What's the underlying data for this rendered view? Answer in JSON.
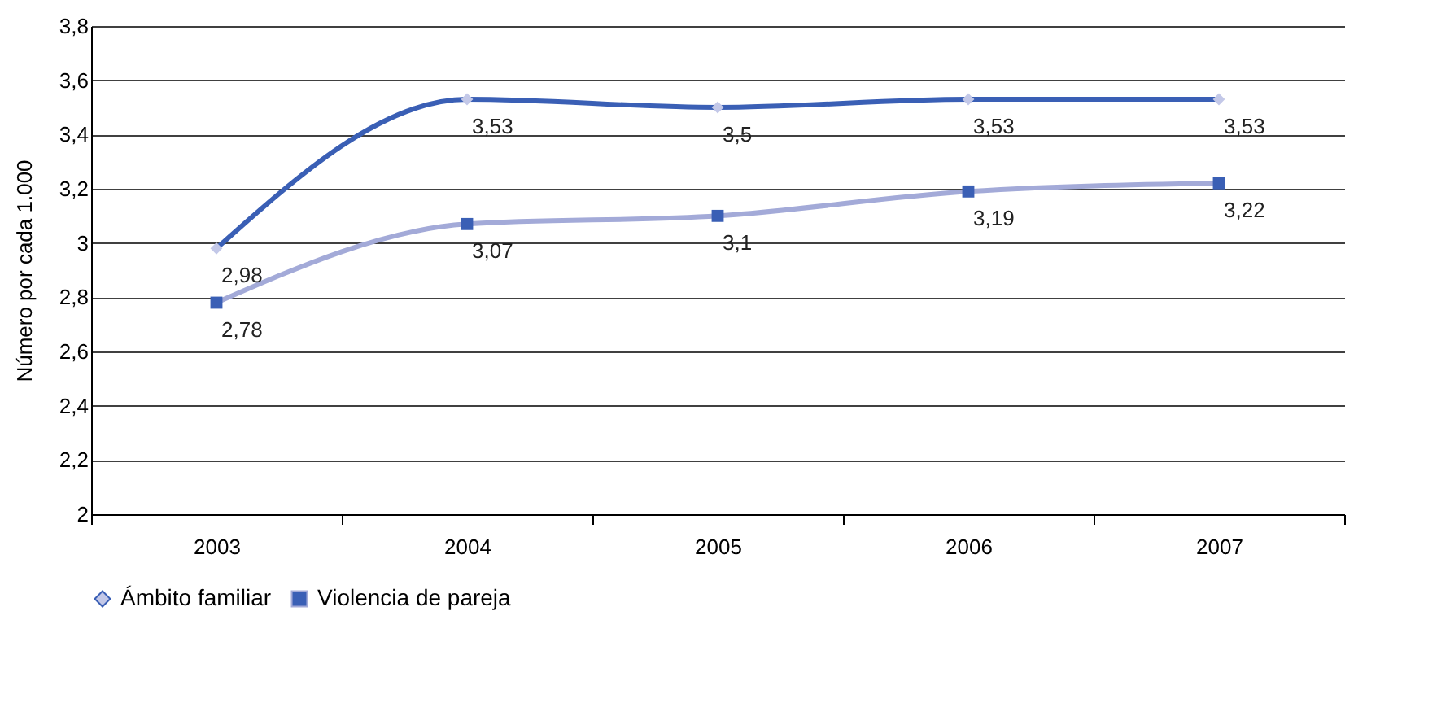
{
  "chart_data": {
    "type": "line",
    "ylabel": "Número por cada 1.000",
    "categories": [
      "2003",
      "2004",
      "2005",
      "2006",
      "2007"
    ],
    "series": [
      {
        "name": "Ámbito familiar",
        "color": "#3a5fb5",
        "marker": "diamond",
        "colors": [
          "#c3c8e8",
          "#c3c8e8",
          "#c3c8e8",
          "#c3c8e8",
          "#c3c8e8"
        ],
        "values": [
          2.98,
          3.53,
          3.5,
          3.53,
          3.53
        ],
        "value_labels": [
          "2,98",
          "3,53",
          "3,5",
          "3,53",
          "3,53"
        ]
      },
      {
        "name": "Violencia de pareja",
        "color": "#a3aad8",
        "marker": "square",
        "colors": [
          "#3a5fb5",
          "#3a5fb5",
          "#3a5fb5",
          "#3a5fb5",
          "#3a5fb5"
        ],
        "values": [
          2.78,
          3.07,
          3.1,
          3.19,
          3.22
        ],
        "value_labels": [
          "2,78",
          "3,07",
          "3,1",
          "3,19",
          "3,22"
        ]
      }
    ],
    "ylim": [
      2,
      3.8
    ],
    "yticks": [
      2,
      {
        "value": 2.2,
        "label": "2,2"
      },
      {
        "value": 2.4,
        "label": "2,4"
      },
      {
        "value": 2.6,
        "label": "2,6"
      },
      {
        "value": 2.8,
        "label": "2,8"
      },
      3,
      {
        "value": 3.2,
        "label": "3,2"
      },
      {
        "value": 3.4,
        "label": "3,4"
      },
      {
        "value": 3.6,
        "label": "3,6"
      },
      {
        "value": 3.8,
        "label": "3,8"
      }
    ],
    "grid": "y",
    "legend": "bottom",
    "line_style": "solid"
  }
}
